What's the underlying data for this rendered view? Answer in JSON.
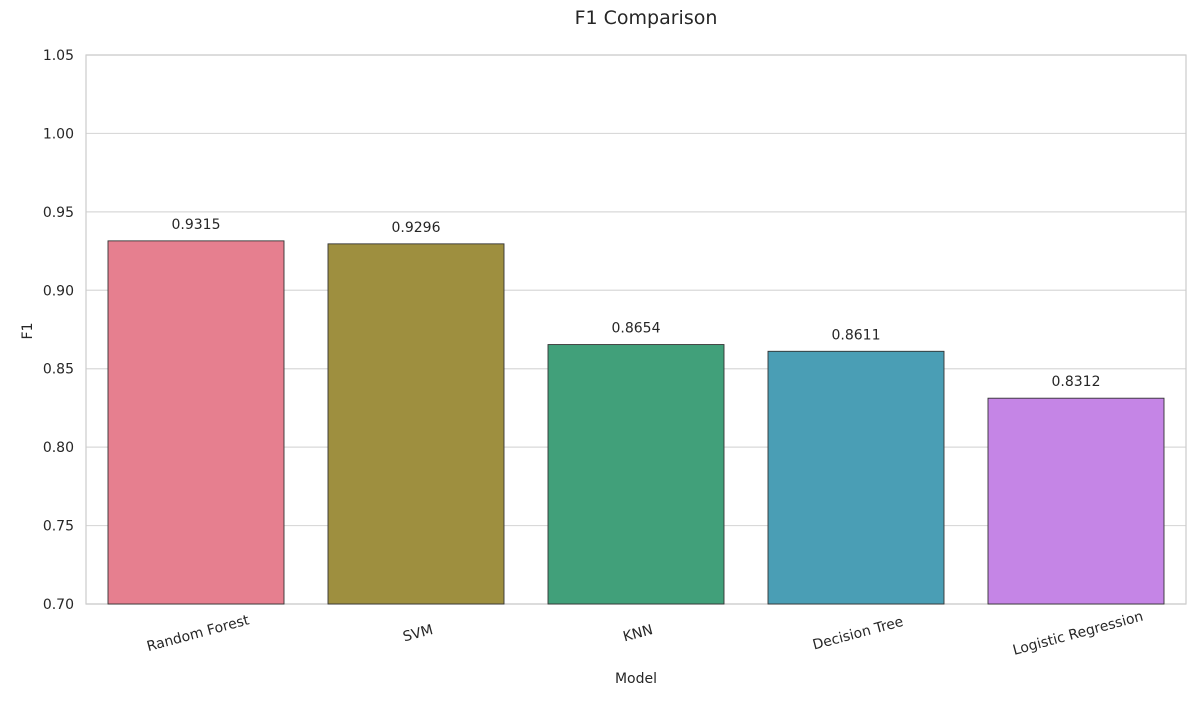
{
  "chart_data": {
    "type": "bar",
    "title": "F1 Comparison",
    "xlabel": "Model",
    "ylabel": "F1",
    "categories": [
      "Random Forest",
      "SVM",
      "KNN",
      "Decision Tree",
      "Logistic Regression"
    ],
    "values": [
      0.9315,
      0.9296,
      0.8654,
      0.8611,
      0.8312
    ],
    "value_labels": [
      "0.9315",
      "0.9296",
      "0.8654",
      "0.8611",
      "0.8312"
    ],
    "colors": [
      "#e67f8f",
      "#9e8f3f",
      "#41a07a",
      "#4a9eb5",
      "#c585e6"
    ],
    "ylim": [
      0.7,
      1.05
    ],
    "yticks": [
      0.7,
      0.75,
      0.8,
      0.85,
      0.9,
      0.95,
      1.0,
      1.05
    ],
    "ytick_labels": [
      "0.70",
      "0.75",
      "0.80",
      "0.85",
      "0.90",
      "0.95",
      "1.00",
      "1.05"
    ],
    "grid": "horizontal",
    "xtick_rotation_deg": 15
  }
}
